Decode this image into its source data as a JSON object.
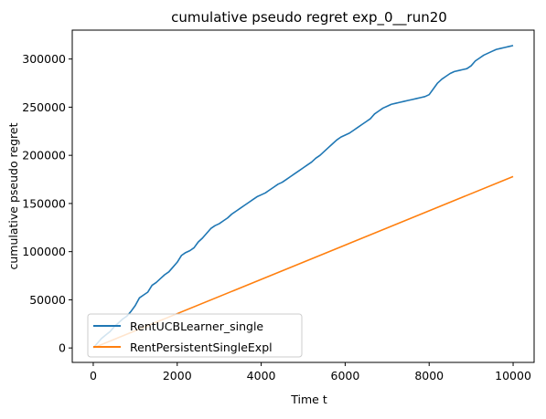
{
  "chart_data": {
    "type": "line",
    "title": "cumulative pseudo regret exp_0__run20",
    "xlabel": "Time t",
    "ylabel": "cumulative pseudo regret",
    "xlim": [
      -500,
      10500
    ],
    "ylim": [
      -15000,
      330000
    ],
    "xticks": [
      0,
      2000,
      4000,
      6000,
      8000,
      10000
    ],
    "xtick_labels": [
      "0",
      "2000",
      "4000",
      "6000",
      "8000",
      "10000"
    ],
    "yticks": [
      0,
      50000,
      100000,
      150000,
      200000,
      250000,
      300000
    ],
    "ytick_labels": [
      "0",
      "50000",
      "100000",
      "150000",
      "200000",
      "250000",
      "300000"
    ],
    "grid": false,
    "legend_position": "lower-left",
    "series": [
      {
        "name": "RentUCBLearner_single",
        "color": "#1f77b4",
        "x": [
          0,
          100,
          200,
          300,
          400,
          500,
          600,
          700,
          800,
          900,
          1000,
          1100,
          1200,
          1300,
          1400,
          1500,
          1600,
          1700,
          1800,
          1900,
          2000,
          2100,
          2200,
          2300,
          2400,
          2500,
          2600,
          2700,
          2800,
          2900,
          3000,
          3100,
          3200,
          3300,
          3400,
          3500,
          3600,
          3700,
          3800,
          3900,
          4000,
          4100,
          4200,
          4300,
          4400,
          4500,
          4600,
          4700,
          4800,
          4900,
          5000,
          5100,
          5200,
          5300,
          5400,
          5500,
          5600,
          5700,
          5800,
          5900,
          6000,
          6100,
          6200,
          6300,
          6400,
          6500,
          6600,
          6700,
          6800,
          6900,
          7000,
          7100,
          7200,
          7300,
          7400,
          7500,
          7600,
          7700,
          7800,
          7900,
          8000,
          8100,
          8200,
          8300,
          8400,
          8500,
          8600,
          8700,
          8800,
          8900,
          9000,
          9100,
          9200,
          9300,
          9400,
          9500,
          9600,
          9700,
          9800,
          9900,
          10000
        ],
        "values": [
          0,
          5000,
          10000,
          13500,
          17000,
          22000,
          26000,
          30000,
          33000,
          38000,
          44000,
          52000,
          55000,
          58000,
          65000,
          68000,
          72000,
          76000,
          79000,
          84000,
          89000,
          96000,
          99000,
          101000,
          104000,
          110000,
          114000,
          119000,
          124000,
          127000,
          129000,
          132000,
          135000,
          139000,
          142000,
          145000,
          148000,
          151000,
          154000,
          157000,
          159000,
          161000,
          164000,
          167000,
          170000,
          172000,
          175000,
          178000,
          181000,
          184000,
          187000,
          190000,
          193000,
          197000,
          200000,
          204000,
          208000,
          212000,
          216000,
          219000,
          221000,
          223000,
          226000,
          229000,
          232000,
          235000,
          238000,
          243000,
          246000,
          249000,
          251000,
          253000,
          254000,
          255000,
          256000,
          257000,
          258000,
          259000,
          260000,
          261000,
          263000,
          269000,
          275000,
          279000,
          282000,
          285000,
          287000,
          288000,
          289000,
          290000,
          293000,
          298000,
          301000,
          304000,
          306000,
          308000,
          310000,
          311000,
          312000,
          313000,
          314000
        ]
      },
      {
        "name": "RentPersistentSingleExpl",
        "color": "#ff7f0e",
        "x": [
          0,
          10000
        ],
        "values": [
          0,
          178000
        ]
      }
    ]
  }
}
